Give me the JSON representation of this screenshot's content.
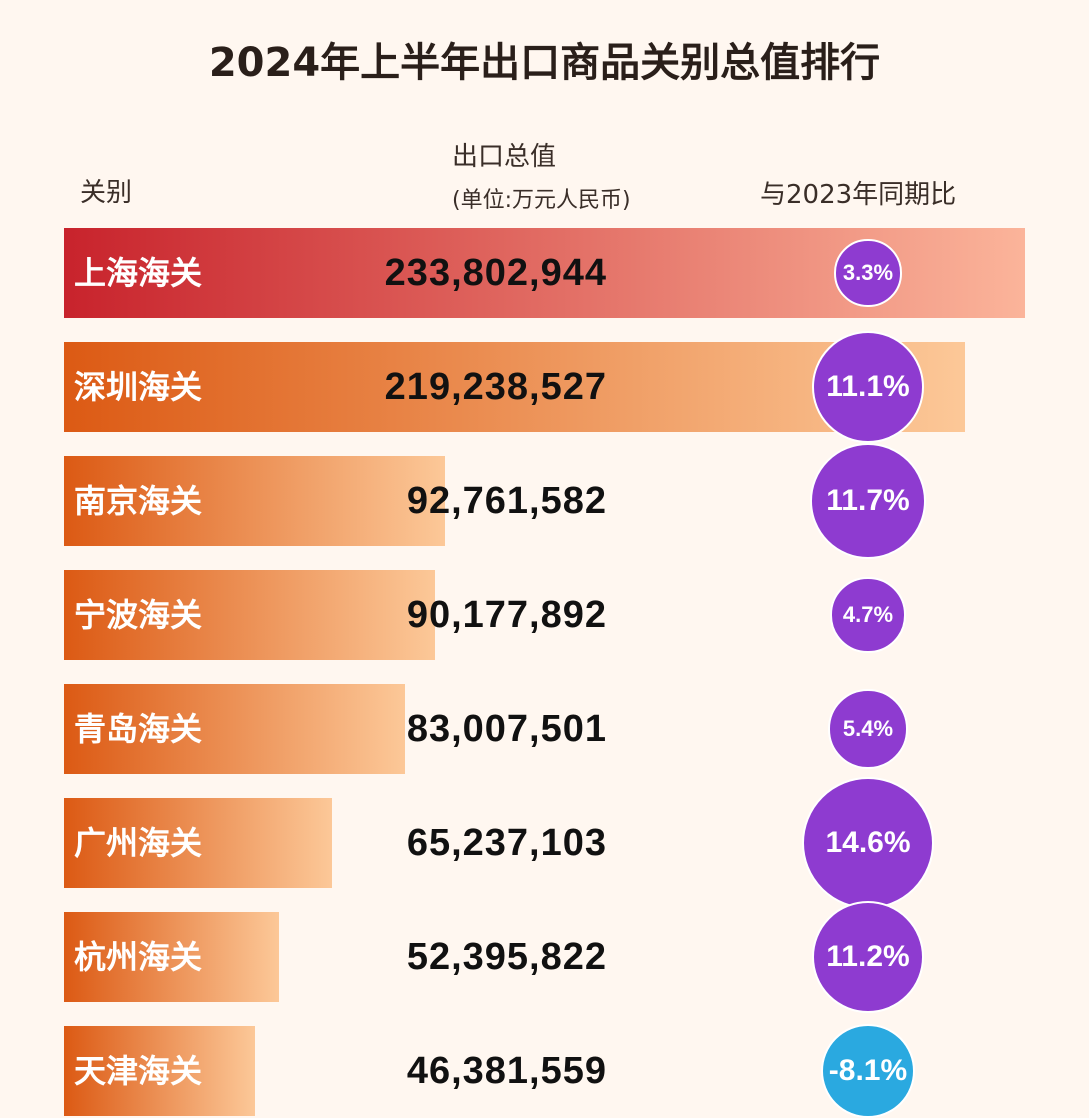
{
  "chart_data": {
    "type": "bar",
    "title": "2024年上半年出口商品关别总值排行",
    "columns": {
      "category": "关别",
      "value": "出口总值",
      "value_unit": "(单位:万元人民币)",
      "change": "与2023年同期比"
    },
    "categories": [
      "上海海关",
      "深圳海关",
      "南京海关",
      "宁波海关",
      "青岛海关",
      "广州海关",
      "杭州海关",
      "天津海关"
    ],
    "values": [
      233802944,
      219238527,
      92761582,
      90177892,
      83007501,
      65237103,
      52395822,
      46381559
    ],
    "value_labels": [
      "233,802,944",
      "219,238,527",
      "92,761,582",
      "90,177,892",
      "83,007,501",
      "65,237,103",
      "52,395,822",
      "46,381,559"
    ],
    "yoy_change_pct": [
      3.3,
      11.1,
      11.7,
      4.7,
      5.4,
      14.6,
      11.2,
      -8.1
    ],
    "yoy_labels": [
      "3.3%",
      "11.1%",
      "11.7%",
      "4.7%",
      "5.4%",
      "14.6%",
      "11.2%",
      "-8.1%"
    ],
    "colors": {
      "top_bar": [
        "#c8232c",
        "#fbb49a"
      ],
      "bar": [
        "#dc5a14",
        "#fcc898"
      ],
      "positive": "#8e3bd0",
      "negative": "#2aa9e0",
      "background": "#fff7f0"
    }
  }
}
